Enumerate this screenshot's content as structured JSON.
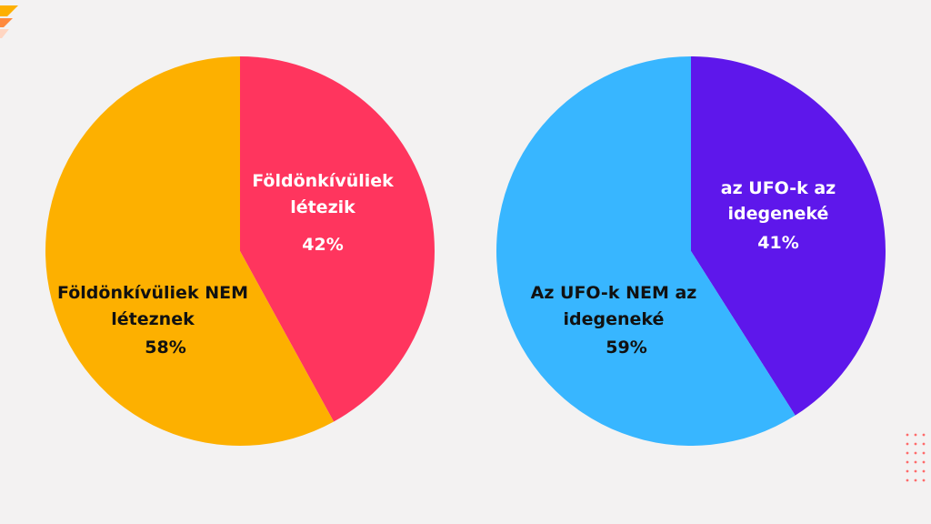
{
  "chart_data": [
    {
      "type": "pie",
      "slices": [
        {
          "label_lines": [
            "Földönkívüliek",
            "létezik"
          ],
          "pct_text": "42%",
          "value": 42,
          "color": "#ff355e",
          "text_color": "#ffffff"
        },
        {
          "label_lines": [
            "Földönkívüliek NEM",
            "léteznek"
          ],
          "pct_text": "58%",
          "value": 58,
          "color": "#fdb000",
          "text_color": "#111111"
        }
      ]
    },
    {
      "type": "pie",
      "slices": [
        {
          "label_lines": [
            "az UFO-k az",
            "idegeneké"
          ],
          "pct_text": "41%",
          "value": 41,
          "color": "#5e17eb",
          "text_color": "#ffffff"
        },
        {
          "label_lines": [
            "Az UFO-k NEM az",
            "idegeneké"
          ],
          "pct_text": "59%",
          "value": 59,
          "color": "#38b6ff",
          "text_color": "#111111"
        }
      ]
    }
  ],
  "decor": {
    "corner_chevron_colors": [
      "#fdb000",
      "#ff8a3d",
      "#ffd6c2"
    ],
    "dot_grid_color": "#ff6b6b"
  }
}
